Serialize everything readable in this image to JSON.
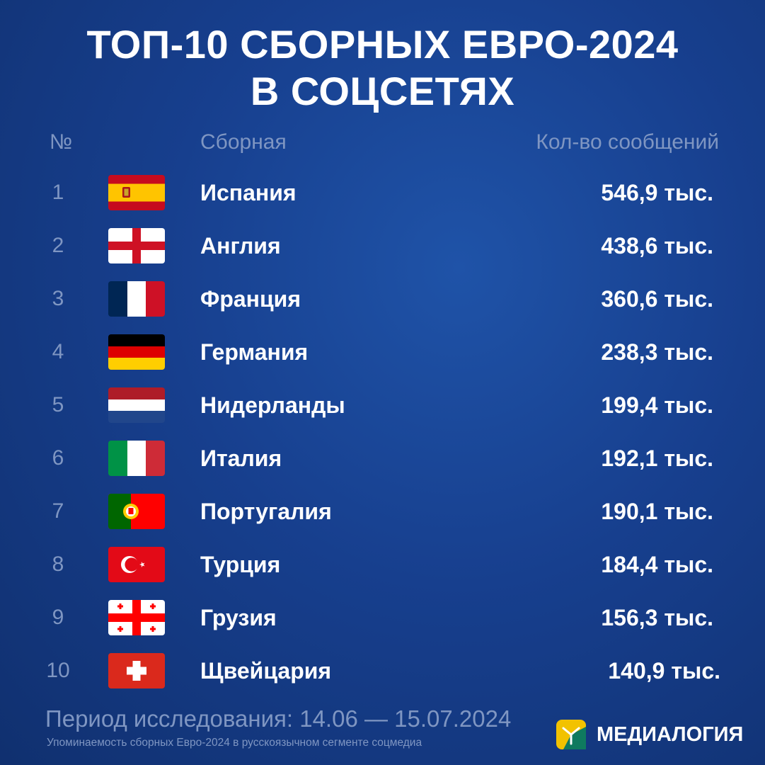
{
  "title_line1": "ТОП-10 СБОРНЫХ ЕВРО-2024",
  "title_line2": "В СОЦСЕТЯХ",
  "header": {
    "num": "№",
    "team": "Сборная",
    "count": "Кол-во сообщений"
  },
  "colors": {
    "background": "#173f8e",
    "muted_text": "#7f96c2",
    "text": "#ffffff"
  },
  "chart_data": {
    "type": "table",
    "title": "ТОП-10 СБОРНЫХ ЕВРО-2024 В СОЦСЕТЯХ",
    "columns": [
      "№",
      "Сборная",
      "Кол-во сообщений"
    ],
    "rows": [
      {
        "rank": "1",
        "team": "Испания",
        "flag": "spain-flag-icon",
        "count": "546,9 тыс.",
        "value": 546.9
      },
      {
        "rank": "2",
        "team": "Англия",
        "flag": "england-flag-icon",
        "count": "438,6 тыс.",
        "value": 438.6
      },
      {
        "rank": "3",
        "team": "Франция",
        "flag": "france-flag-icon",
        "count": "360,6 тыс.",
        "value": 360.6
      },
      {
        "rank": "4",
        "team": "Германия",
        "flag": "germany-flag-icon",
        "count": "238,3 тыс.",
        "value": 238.3
      },
      {
        "rank": "5",
        "team": "Нидерланды",
        "flag": "netherlands-flag-icon",
        "count": "199,4 тыс.",
        "value": 199.4
      },
      {
        "rank": "6",
        "team": "Италия",
        "flag": "italy-flag-icon",
        "count": "192,1 тыс.",
        "value": 192.1
      },
      {
        "rank": "7",
        "team": "Португалия",
        "flag": "portugal-flag-icon",
        "count": "190,1 тыс.",
        "value": 190.1
      },
      {
        "rank": "8",
        "team": "Турция",
        "flag": "turkey-flag-icon",
        "count": "184,4 тыс.",
        "value": 184.4
      },
      {
        "rank": "9",
        "team": "Грузия",
        "flag": "georgia-flag-icon",
        "count": "156,3 тыс.",
        "value": 156.3
      },
      {
        "rank": "10",
        "team": "Щвейцария",
        "flag": "switzerland-flag-icon",
        "count": "140,9 тыс.",
        "value": 140.9
      }
    ]
  },
  "footer": {
    "period": "Период исследования: 14.06 — 15.07.2024",
    "note": "Упоминаемость сборных Евро-2024 в русскоязычном сегменте соцмедиа",
    "brand": "МЕДИАЛОГИЯ",
    "brand_icon": "medialogia-logo-icon"
  }
}
